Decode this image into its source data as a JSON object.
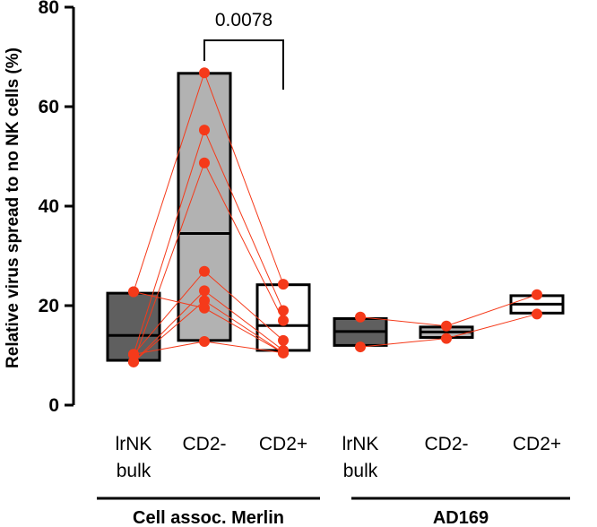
{
  "chart_data": {
    "type": "box",
    "title": "",
    "ylabel": "Relative virus spread to no NK cells (%)",
    "xlabel": "",
    "ylim": [
      0,
      80
    ],
    "yticks": [
      0,
      20,
      40,
      60,
      80
    ],
    "categories": [
      {
        "key": "m_lrnk",
        "lines": [
          "lrNK",
          "bulk"
        ],
        "fill": "#5f5f5f"
      },
      {
        "key": "m_cd2neg",
        "lines": [
          "CD2-"
        ],
        "fill": "#b2b2b2"
      },
      {
        "key": "m_cd2pos",
        "lines": [
          "CD2+"
        ],
        "fill": "#ffffff"
      },
      {
        "key": "a_lrnk",
        "lines": [
          "lrNK",
          "bulk"
        ],
        "fill": "#5f5f5f"
      },
      {
        "key": "a_cd2neg",
        "lines": [
          "CD2-"
        ],
        "fill": "#b2b2b2"
      },
      {
        "key": "a_cd2pos",
        "lines": [
          "CD2+"
        ],
        "fill": "#ffffff"
      }
    ],
    "boxes": [
      {
        "min": 9,
        "median": 14,
        "max": 22.5
      },
      {
        "min": 13,
        "median": 34.5,
        "max": 66.7
      },
      {
        "min": 11,
        "median": 16,
        "max": 24.2
      },
      {
        "min": 12,
        "median": 14.8,
        "max": 17.4
      },
      {
        "min": 13.6,
        "median": 14.7,
        "max": 15.7
      },
      {
        "min": 18.5,
        "median": 20.3,
        "max": 22
      }
    ],
    "groups": [
      {
        "label": "Cell assoc. Merlin",
        "categories": [
          0,
          1,
          2
        ]
      },
      {
        "label": "AD169",
        "categories": [
          3,
          4,
          5
        ]
      }
    ],
    "paired_series": [
      {
        "cat_indices": [
          0,
          1,
          2
        ],
        "values": [
          22.8,
          66.8,
          24.3
        ]
      },
      {
        "cat_indices": [
          0,
          1,
          2
        ],
        "values": [
          10.2,
          55.3,
          19.0
        ]
      },
      {
        "cat_indices": [
          0,
          1,
          2
        ],
        "values": [
          8.7,
          48.7,
          17.0
        ]
      },
      {
        "cat_indices": [
          0,
          1,
          2
        ],
        "values": [
          10.2,
          26.9,
          13.0
        ]
      },
      {
        "cat_indices": [
          0,
          1,
          2
        ],
        "values": [
          8.7,
          23.0,
          11.0
        ]
      },
      {
        "cat_indices": [
          0,
          1,
          2
        ],
        "values": [
          8.7,
          21.0,
          10.5
        ]
      },
      {
        "cat_indices": [
          0,
          1,
          2
        ],
        "values": [
          22.8,
          19.5,
          10.5
        ]
      },
      {
        "cat_indices": [
          0,
          1,
          2
        ],
        "values": [
          10.2,
          12.8,
          10.5
        ]
      },
      {
        "cat_indices": [
          3,
          4,
          5
        ],
        "values": [
          17.7,
          15.9,
          22.2
        ]
      },
      {
        "cat_indices": [
          3,
          4,
          5
        ],
        "values": [
          11.7,
          13.4,
          18.3
        ]
      }
    ],
    "significance": {
      "from": 1,
      "to": 2,
      "label": "0.0078"
    },
    "colors": {
      "point": "#f53a1a",
      "line": "#f53a1a",
      "box_edge": "#000000"
    }
  }
}
